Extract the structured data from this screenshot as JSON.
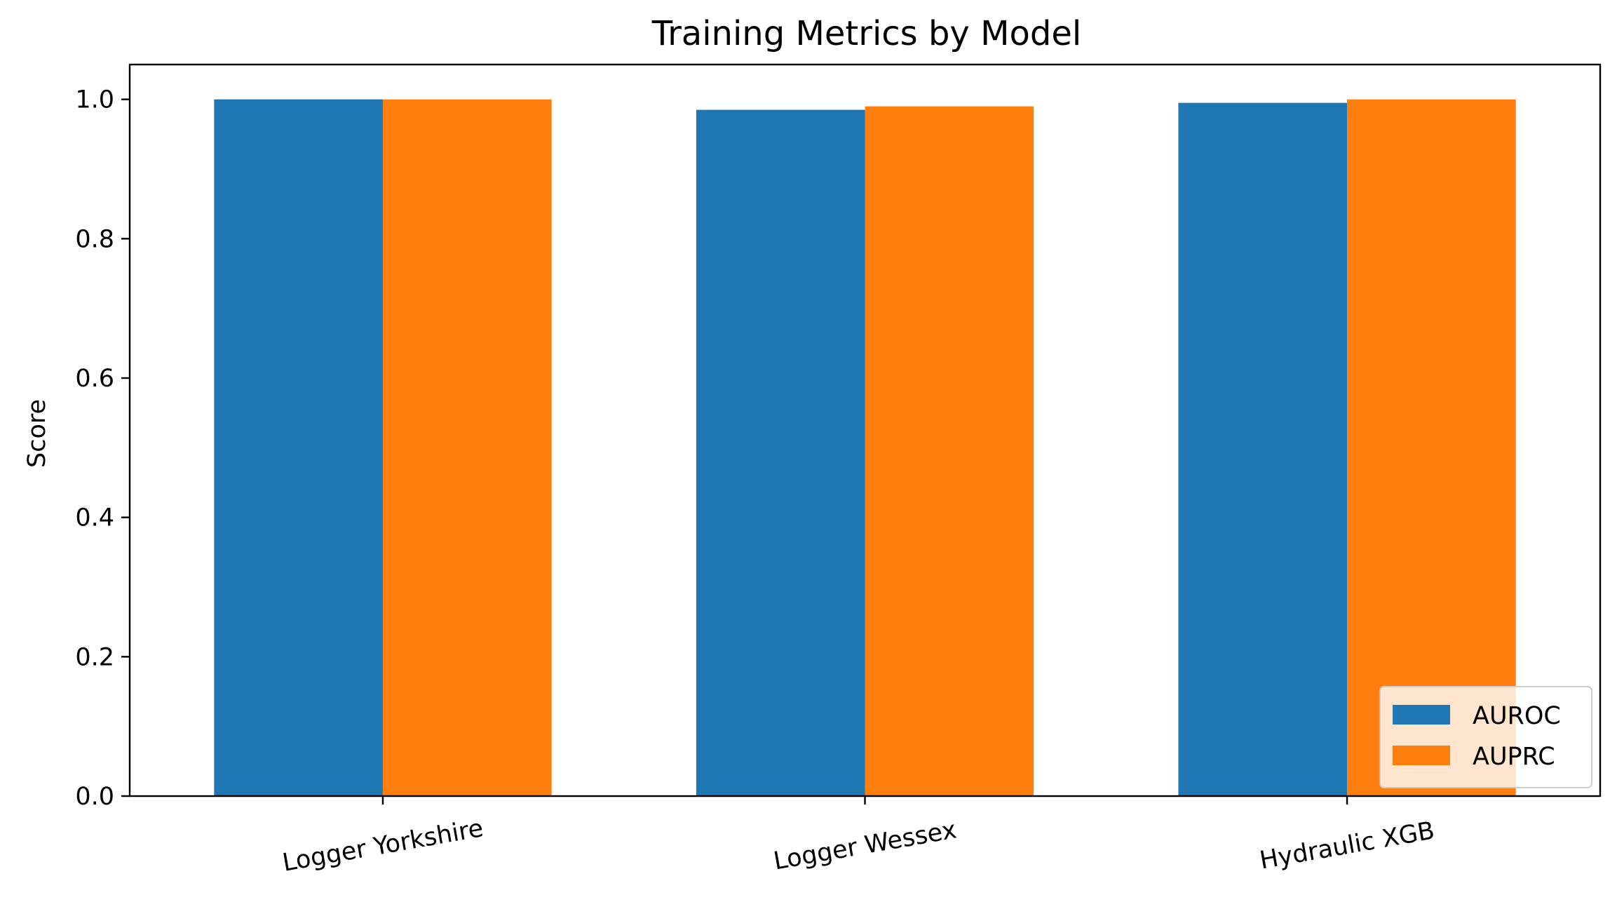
{
  "chart_data": {
    "type": "bar",
    "title": "Training Metrics by Model",
    "xlabel": "",
    "ylabel": "Score",
    "categories": [
      "Logger Yorkshire",
      "Logger Wessex",
      "Hydraulic XGB"
    ],
    "series": [
      {
        "name": "AUROC",
        "color": "#1f77b4",
        "values": [
          1.0,
          0.985,
          0.995
        ]
      },
      {
        "name": "AUPRC",
        "color": "#ff7f0e",
        "values": [
          1.0,
          0.99,
          1.0
        ]
      }
    ],
    "ylim": [
      0,
      1.05
    ],
    "yticks": [
      0.0,
      0.2,
      0.4,
      0.6,
      0.8,
      1.0
    ],
    "ytick_labels": [
      "0.0",
      "0.2",
      "0.4",
      "0.6",
      "0.8",
      "1.0"
    ],
    "xtick_rotation_deg": -10,
    "grid": false,
    "legend_position": "bottom-right"
  }
}
